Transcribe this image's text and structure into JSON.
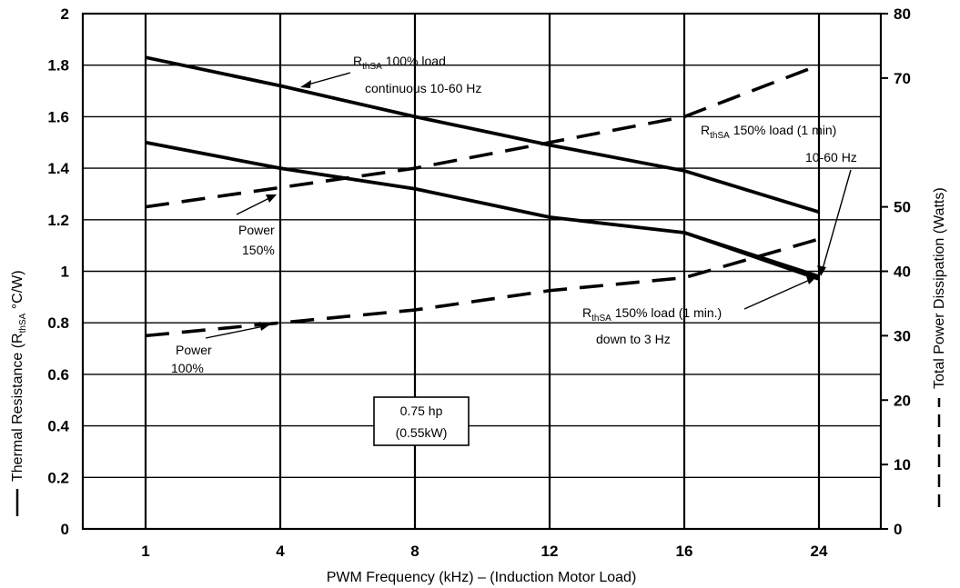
{
  "chart_data": {
    "type": "line",
    "xlabel": "PWM Frequency (kHz) – (Induction Motor Load)",
    "ylabel_left": "Thermal Resistance (R",
    "ylabel_left_sub": "thSA",
    "ylabel_left_tail": " °C/W)",
    "ylabel_right": "Total Power Dissipation (Watts)",
    "x_categories": [
      "1",
      "4",
      "8",
      "12",
      "16",
      "24"
    ],
    "x_positions": [
      1,
      4,
      8,
      12,
      16,
      24
    ],
    "ylim_left": [
      0,
      2
    ],
    "yticks_left": [
      "0",
      "0.2",
      "0.4",
      "0.6",
      "0.8",
      "1",
      "1.2",
      "1.4",
      "1.6",
      "1.8",
      "2"
    ],
    "ylim_right": [
      0,
      80
    ],
    "yticks_right": [
      "0",
      "10",
      "20",
      "30",
      "40",
      "50",
      "70",
      "80"
    ],
    "yticks_right_values": [
      0,
      10,
      20,
      30,
      40,
      50,
      70,
      80
    ],
    "grid": true,
    "series": [
      {
        "name": "RthSA 100% load continuous 10-60 Hz",
        "axis": "left",
        "style": "solid",
        "x": [
          1,
          4,
          8,
          12,
          16,
          24
        ],
        "y": [
          1.83,
          1.72,
          1.6,
          1.49,
          1.39,
          1.23
        ]
      },
      {
        "name": "RthSA 150% load (1 min) 10-60 Hz",
        "axis": "left",
        "style": "solid",
        "x": [
          1,
          4,
          8,
          12,
          16,
          24
        ],
        "y": [
          1.5,
          1.4,
          1.32,
          1.21,
          1.15,
          0.98
        ]
      },
      {
        "name": "RthSA 150% load (1 min.) down to 3 Hz",
        "axis": "left",
        "style": "solid",
        "x": [
          16,
          24
        ],
        "y": [
          1.15,
          0.97
        ]
      },
      {
        "name": "Power 150%",
        "axis": "right",
        "style": "dashed",
        "x": [
          1,
          4,
          8,
          12,
          16,
          24
        ],
        "y": [
          50,
          53,
          56,
          60,
          64,
          72
        ]
      },
      {
        "name": "Power 100%",
        "axis": "right",
        "style": "dashed",
        "x": [
          1,
          4,
          8,
          12,
          16,
          24
        ],
        "y": [
          30,
          32,
          34,
          37,
          39,
          45
        ]
      }
    ],
    "annotations": {
      "r100_main": "R",
      "r100_sub": "thSA",
      "r100_tail": " 100% load",
      "r100_line2": "continuous 10-60 Hz",
      "r150_main": "R",
      "r150_sub": "thSA",
      "r150_tail": " 150% load (1 min)",
      "r150_line2": "10-60 Hz",
      "r150b_main": "R",
      "r150b_sub": "thSA",
      "r150b_tail": " 150% load (1 min.)",
      "r150b_line2": "down to 3 Hz",
      "p150_line1": "Power",
      "p150_line2": "150%",
      "p100_line1": "Power",
      "p100_line2": "100%",
      "box_line1": "0.75 hp",
      "box_line2": "(0.55kW)"
    }
  }
}
